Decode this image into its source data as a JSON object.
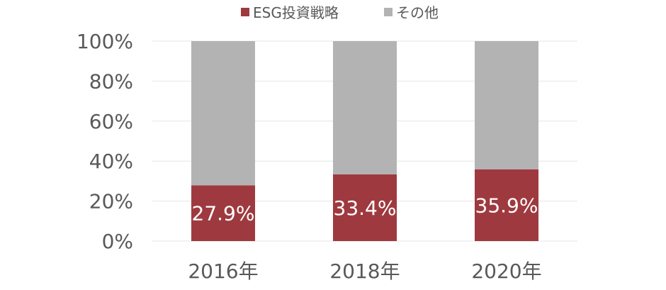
{
  "chart_data": {
    "type": "bar",
    "stacked": true,
    "categories": [
      "2016年",
      "2018年",
      "2020年"
    ],
    "series": [
      {
        "name": "ESG投資戦略",
        "values": [
          27.9,
          33.4,
          35.9
        ],
        "color": "#9e3a3f"
      },
      {
        "name": "その他",
        "values": [
          72.1,
          66.6,
          64.1
        ],
        "color": "#b3b3b3"
      }
    ],
    "data_labels": [
      "27.9%",
      "33.4%",
      "35.9%"
    ],
    "y_ticks": [
      "0%",
      "20%",
      "40%",
      "60%",
      "80%",
      "100%"
    ],
    "ylim": [
      0,
      100
    ],
    "grid": true,
    "legend_position": "top"
  }
}
